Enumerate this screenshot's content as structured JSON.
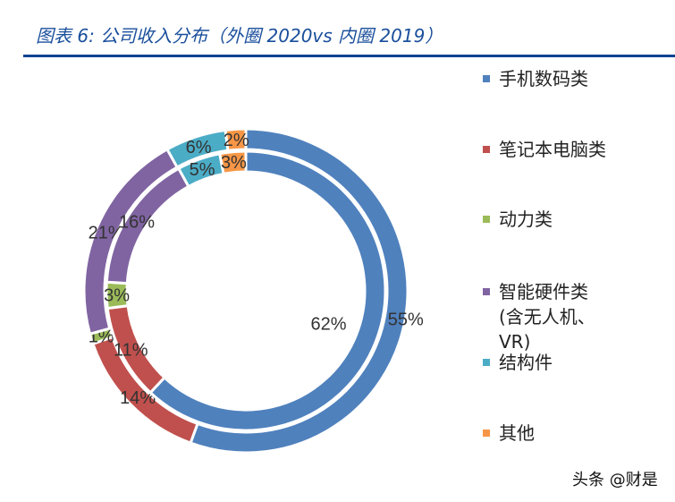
{
  "title": "图表 6: 公司收入分布（外圈 2020vs 内圈 2019）",
  "watermark": "头条 @财是",
  "chart_data": {
    "type": "donut",
    "title": "图表 6: 公司收入分布（外圈 2020vs 内圈 2019）",
    "categories": [
      "手机数码类",
      "笔记本电脑类",
      "动力类",
      "智能硬件类\n(含无人机、\nVR)",
      "结构件",
      "其他"
    ],
    "colors": [
      "#4F81BD",
      "#C0504D",
      "#9BBB59",
      "#8064A2",
      "#4BACC6",
      "#F79646"
    ],
    "series": [
      {
        "name": "2020",
        "ring": "outer",
        "values": [
          55,
          14,
          1,
          21,
          6,
          2
        ],
        "labels": [
          "55%",
          "14%",
          "1%",
          "21%",
          "6%",
          "2%"
        ]
      },
      {
        "name": "2019",
        "ring": "inner",
        "values": [
          62,
          11,
          3,
          16,
          5,
          3
        ],
        "labels": [
          "62%",
          "11%",
          "3%",
          "16%",
          "5%",
          "3%"
        ]
      }
    ],
    "legend_position": "right"
  }
}
